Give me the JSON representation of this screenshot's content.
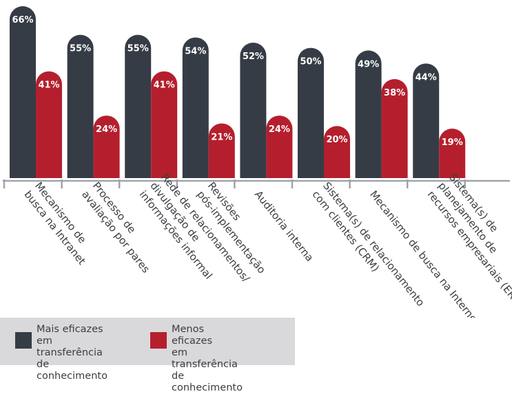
{
  "chart_data": {
    "type": "bar",
    "categories": [
      "Mecanismo de\nbusca na Intranet",
      "Processo de\navaliação por pares",
      "Rede de relacionamentos/\ndivulgação de\ninformações informal",
      "Revisões\npós-implementação",
      "Auditoria interna",
      "Sistema(s) de relacionamento\ncom clientes (CRM)",
      "Mecanismo de busca na Internet",
      "Sistema(s) de\nplanejamento de\nrecursos empresariais (ERP)"
    ],
    "series": [
      {
        "name": "Mais eficazes\nem transferência\nde conhecimento",
        "color": "#363c45",
        "values": [
          66,
          55,
          55,
          54,
          52,
          50,
          49,
          44
        ],
        "labels": [
          "66%",
          "55%",
          "55%",
          "54%",
          "52%",
          "50%",
          "49%",
          "44%"
        ]
      },
      {
        "name": "Menos eficazes\nem transferência\nde conhecimento",
        "color": "#b51f2d",
        "values": [
          41,
          24,
          41,
          21,
          24,
          20,
          38,
          19
        ],
        "labels": [
          "41%",
          "24%",
          "41%",
          "21%",
          "24%",
          "20%",
          "38%",
          "19%"
        ]
      }
    ],
    "ylim": [
      0,
      66
    ],
    "axis_color": "#a0a3a8",
    "label_color": "#ffffff",
    "category_text_color": "#3a3d42",
    "grid": false,
    "legend_position": "bottom-left"
  }
}
